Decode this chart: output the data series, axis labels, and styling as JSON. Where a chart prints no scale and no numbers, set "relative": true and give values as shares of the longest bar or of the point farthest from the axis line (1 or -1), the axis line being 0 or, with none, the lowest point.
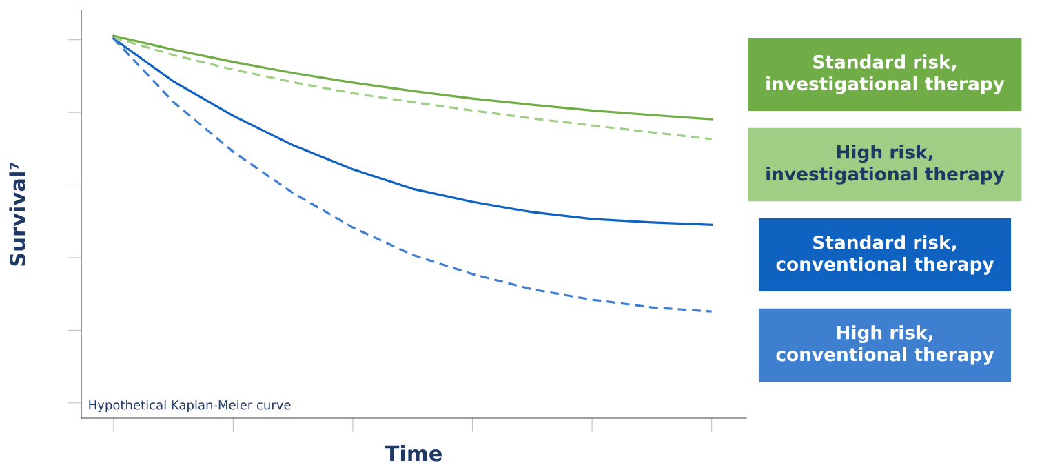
{
  "chart_data": {
    "type": "line",
    "relative": true,
    "xlabel": "Time",
    "ylabel": "Survival⁷",
    "tick_labels": false,
    "grid": false,
    "legend": "right",
    "marker": "none",
    "annotations": [
      "Hypothetical Kaplan-Meier curve"
    ],
    "categories": [
      null,
      null,
      null,
      null,
      null,
      null,
      null,
      null,
      null,
      null,
      null
    ],
    "series": [
      {
        "name": "Standard risk,\ninvestigational therapy",
        "color": "#70ad47",
        "line_style": "solid",
        "values": [
          1,
          0.964,
          0.932,
          0.903,
          0.878,
          0.856,
          0.836,
          0.82,
          0.805,
          0.793,
          0.782
        ]
      },
      {
        "name": "High risk,\ninvestigational therapy",
        "color": "#9fcf85",
        "line_style": "dashed",
        "values": [
          0.996,
          0.95,
          0.912,
          0.879,
          0.85,
          0.827,
          0.805,
          0.784,
          0.766,
          0.748,
          0.73
        ]
      },
      {
        "name": "Standard risk,\nconventional therapy",
        "color": "#0f62c0",
        "line_style": "solid",
        "values": [
          0.993,
          0.881,
          0.791,
          0.714,
          0.651,
          0.6,
          0.566,
          0.539,
          0.521,
          0.512,
          0.506
        ]
      },
      {
        "name": "High risk,\nconventional therapy",
        "color": "#3f7fd0",
        "line_style": "dashed",
        "values": [
          0.993,
          0.827,
          0.697,
          0.589,
          0.499,
          0.427,
          0.377,
          0.337,
          0.31,
          0.29,
          0.279
        ]
      }
    ]
  }
}
